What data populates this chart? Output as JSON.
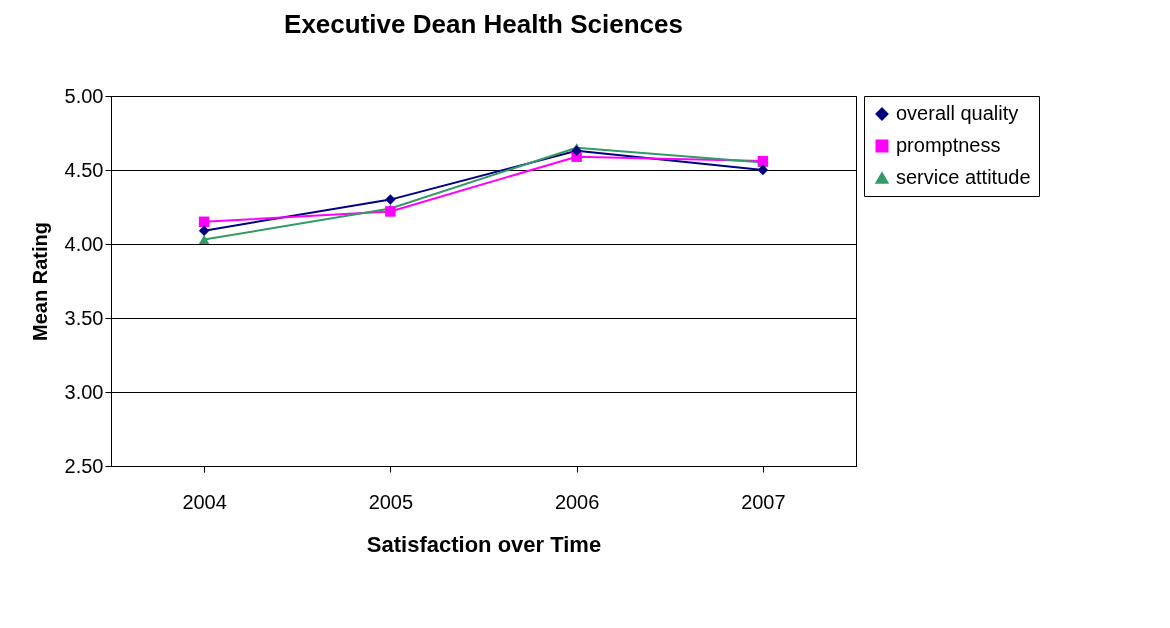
{
  "chart_data": {
    "type": "line",
    "title": "Executive Dean Health Sciences",
    "xlabel": "Satisfaction over Time",
    "ylabel": "Mean Rating",
    "categories": [
      "2004",
      "2005",
      "2006",
      "2007"
    ],
    "series": [
      {
        "name": "overall quality",
        "color": "#000080",
        "marker": "diamond",
        "values": [
          4.09,
          4.3,
          4.63,
          4.5
        ]
      },
      {
        "name": "promptness",
        "color": "#ff00ff",
        "marker": "square",
        "values": [
          4.15,
          4.22,
          4.59,
          4.56
        ]
      },
      {
        "name": "service attitude",
        "color": "#339966",
        "marker": "triangle",
        "values": [
          4.03,
          4.24,
          4.65,
          4.55
        ]
      }
    ],
    "ylim": [
      2.5,
      5
    ],
    "yticks": [
      {
        "value": 2.5,
        "label": "2.50"
      },
      {
        "value": 3,
        "label": "3.00"
      },
      {
        "value": 3.5,
        "label": "3.50"
      },
      {
        "value": 4,
        "label": "4.00"
      },
      {
        "value": 4.5,
        "label": "4.50"
      },
      {
        "value": 5,
        "label": "5.00"
      }
    ],
    "grid": "y",
    "legend": "right"
  }
}
